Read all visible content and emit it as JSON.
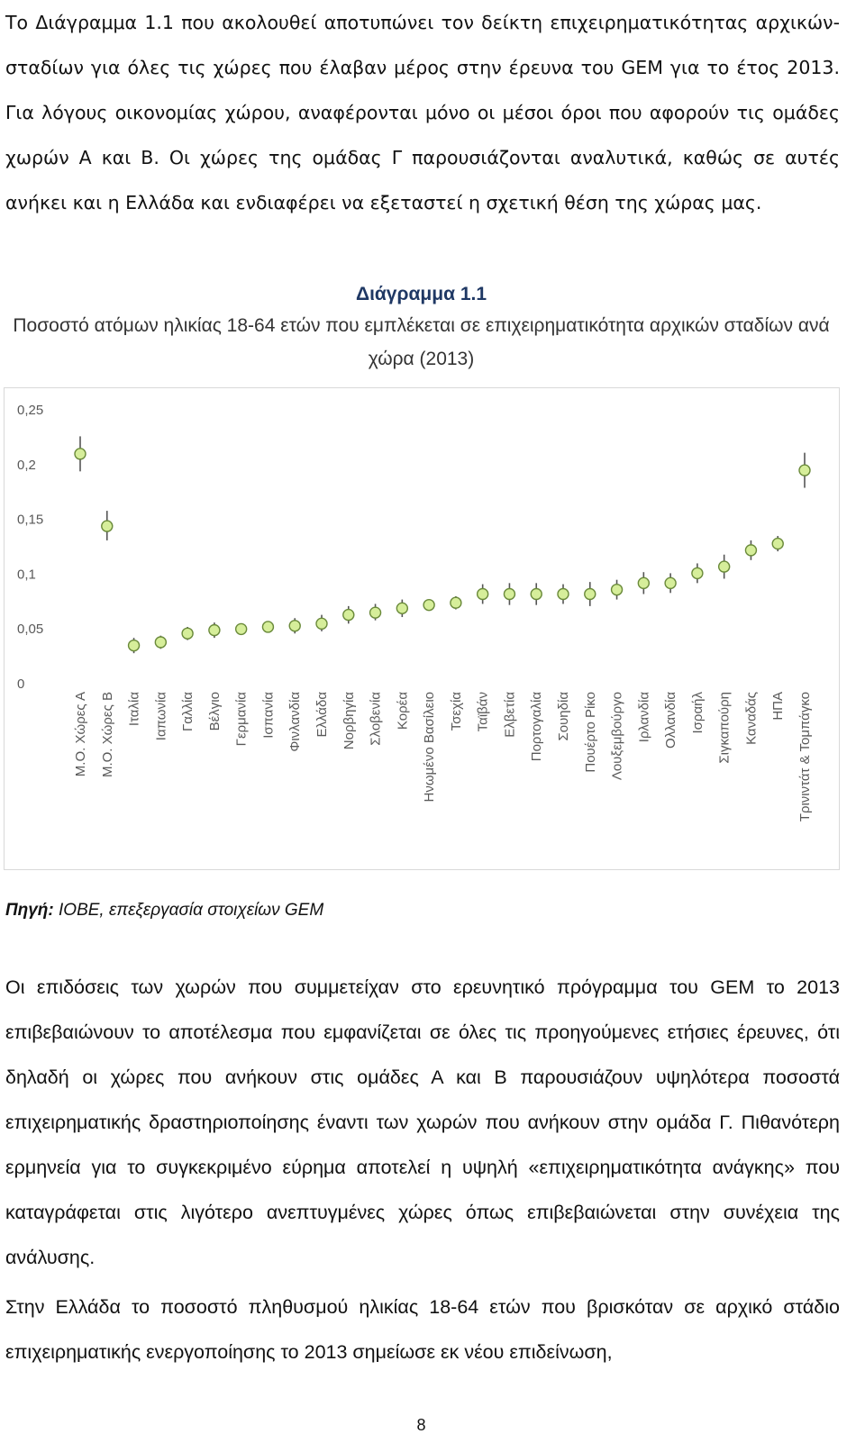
{
  "intro_paragraph": "Το Διάγραμμα 1.1 που ακολουθεί αποτυπώνει τον δείκτη επιχειρηματικότητας αρχικών-σταδίων για όλες τις χώρες που έλαβαν μέρος στην έρευνα του GEM για το έτος 2013. Για λόγους οικονομίας χώρου, αναφέρονται μόνο οι μέσοι όροι που αφορούν τις ομάδες χωρών Α και Β. Οι χώρες της ομάδας Γ παρουσιάζονται αναλυτικά, καθώς σε αυτές ανήκει και η Ελλάδα και ενδιαφέρει να εξεταστεί η σχετική θέση της χώρας μας.",
  "chart_label": "Διάγραμμα 1.1",
  "chart_title": "Ποσοστό ατόμων ηλικίας 18-64 ετών που εμπλέκεται σε επιχειρηματικότητα αρχικών σταδίων ανά χώρα (2013)",
  "source": {
    "label": "Πηγή:",
    "text": " ΙΟΒΕ, επεξεργασία στοιχείων GEM"
  },
  "body_paragraph_1": "Οι επιδόσεις των χωρών που συμμετείχαν στο ερευνητικό πρόγραμμα του GEM το 2013 επιβεβαιώνουν το αποτέλεσμα που εμφανίζεται σε όλες τις προηγούμενες ετήσιες έρευνες, ότι δηλαδή οι χώρες που ανήκουν στις ομάδες Α και Β παρουσιάζουν υψηλότερα ποσοστά επιχειρηματικής δραστηριοποίησης έναντι των χωρών που ανήκουν στην ομάδα Γ. Πιθανότερη ερμηνεία για το συγκεκριμένο εύρημα αποτελεί η υψηλή «επιχειρηματικότητα ανάγκης» που καταγράφεται στις λιγότερο ανεπτυγμένες χώρες όπως επιβεβαιώνεται στην συνέχεια της ανάλυσης.",
  "body_paragraph_2": "Στην Ελλάδα το ποσοστό πληθυσμού ηλικίας 18-64 ετών που βρισκόταν σε αρχικό στάδιο επιχειρηματικής ενεργοποίησης το 2013 σημείωσε εκ νέου επιδείνωση,",
  "page_number": "8",
  "chart_data": {
    "type": "scatter",
    "title": "",
    "ylim": [
      0,
      0.25
    ],
    "yticks": [
      "0",
      "0,05",
      "0,1",
      "0,15",
      "0,2",
      "0,25"
    ],
    "grid": false,
    "legend": "none",
    "colors": {
      "marker_fill": "#d6ee9a",
      "marker_stroke": "#6a8a3a",
      "error_bar": "#555555",
      "tick_text": "#595959"
    },
    "categories": [
      "Μ.Ο. Χώρες Α",
      "Μ.Ο. Χώρες Β",
      "Ιταλία",
      "Ιαπωνία",
      "Γαλλία",
      "Βέλγιο",
      "Γερμανία",
      "Ισπανία",
      "Φινλανδία",
      "Ελλάδα",
      "Νορβηγία",
      "Σλοβενία",
      "Κορέα",
      "Ηνωμένο Βασίλειο",
      "Τσεχία",
      "Ταϊβάν",
      "Ελβετία",
      "Πορτογαλία",
      "Σουηδία",
      "Πουέρτο Ρίκο",
      "Λουξεμβούργο",
      "Ιρλανδία",
      "Ολλανδία",
      "Ισραήλ",
      "Σιγκαπούρη",
      "Καναδάς",
      "ΗΠΑ",
      "Τρινιντάτ & Τομπάγκο"
    ],
    "values": [
      0.209,
      0.143,
      0.034,
      0.037,
      0.045,
      0.048,
      0.049,
      0.051,
      0.052,
      0.054,
      0.062,
      0.064,
      0.068,
      0.071,
      0.073,
      0.081,
      0.081,
      0.081,
      0.081,
      0.081,
      0.085,
      0.091,
      0.091,
      0.1,
      0.106,
      0.121,
      0.127,
      0.194
    ],
    "lower": [
      0.193,
      0.13,
      0.027,
      0.031,
      0.039,
      0.041,
      0.045,
      0.047,
      0.045,
      0.047,
      0.054,
      0.057,
      0.06,
      0.068,
      0.067,
      0.072,
      0.071,
      0.071,
      0.072,
      0.07,
      0.076,
      0.081,
      0.082,
      0.091,
      0.095,
      0.112,
      0.12,
      0.178
    ],
    "upper": [
      0.225,
      0.157,
      0.041,
      0.043,
      0.051,
      0.055,
      0.053,
      0.055,
      0.059,
      0.062,
      0.07,
      0.072,
      0.076,
      0.074,
      0.079,
      0.09,
      0.091,
      0.091,
      0.09,
      0.092,
      0.094,
      0.101,
      0.1,
      0.109,
      0.117,
      0.13,
      0.134,
      0.21
    ]
  }
}
